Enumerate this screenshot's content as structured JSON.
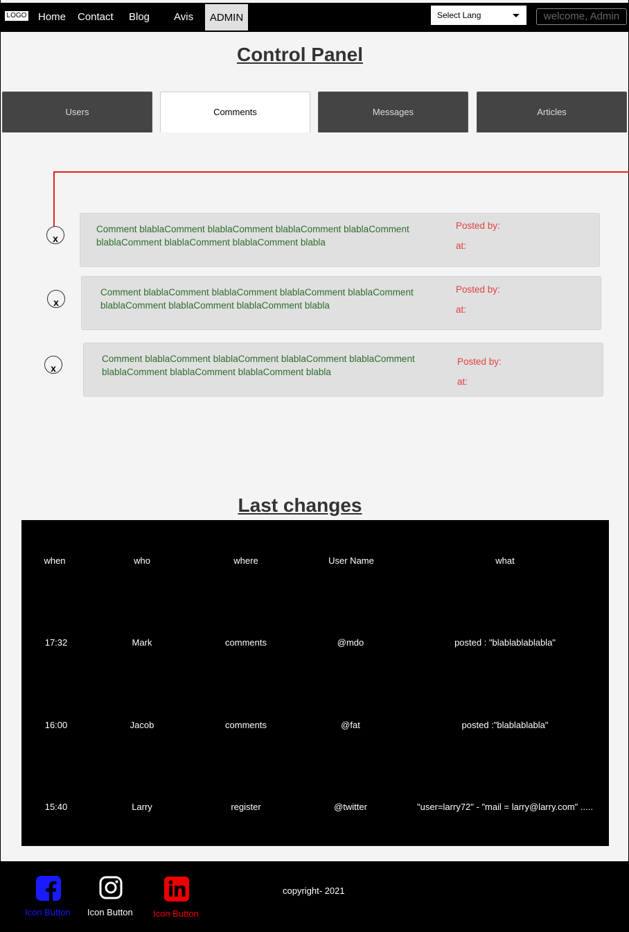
{
  "nav": {
    "logo": "LOGO",
    "links": [
      "Home",
      "Contact",
      "Blog",
      "Avis"
    ],
    "admin": "ADMIN",
    "lang_select": "Select Lang",
    "welcome": "welcome, Admin"
  },
  "page_title": "Control Panel",
  "tabs": [
    "Users",
    "Comments",
    "Messages",
    "Articles"
  ],
  "active_tab": "Comments",
  "comments": [
    {
      "text": "Comment blablaComment blablaComment blablaComment blablaComment blablaComment blablaComment blablaComment blabla",
      "posted_by": "Posted by:",
      "at": "at:",
      "delete": "x"
    },
    {
      "text": "Comment blablaComment blablaComment blablaComment blablaComment blablaComment blablaComment blablaComment blabla",
      "posted_by": "Posted by:",
      "at": "at:",
      "delete": "x"
    },
    {
      "text": "Comment blablaComment blablaComment blablaComment blablaComment blablaComment blablaComment blablaComment blabla",
      "posted_by": "Posted by:",
      "at": "at:",
      "delete": "x"
    }
  ],
  "changes_title": "Last changes",
  "table": {
    "headers": [
      "when",
      "who",
      "where",
      "User Name",
      "what"
    ],
    "rows": [
      [
        "17:32",
        "Mark",
        "comments",
        "@mdo",
        "posted : \"blablablablabla\""
      ],
      [
        "16:00",
        "Jacob",
        "comments",
        "@fat",
        "posted  :\"blablablabla\""
      ],
      [
        "15:40",
        "Larry",
        "register",
        "@twitter",
        "\"user=larry72\" - \"mail =  larry@larry.com\" ....."
      ]
    ]
  },
  "footer": {
    "buttons": [
      {
        "icon": "facebook-icon",
        "label": "Icon Button",
        "color": "#1a1aff"
      },
      {
        "icon": "instagram-icon",
        "label": "Icon Button",
        "color": "#ffffff"
      },
      {
        "icon": "linkedin-icon",
        "label": "Icon Button",
        "color": "#ee0000"
      }
    ],
    "copyright": "copyright- 2021"
  },
  "colors": {
    "comment_text": "#2e6b2e",
    "posted": "#e04040",
    "accent_line": "#e02020"
  }
}
